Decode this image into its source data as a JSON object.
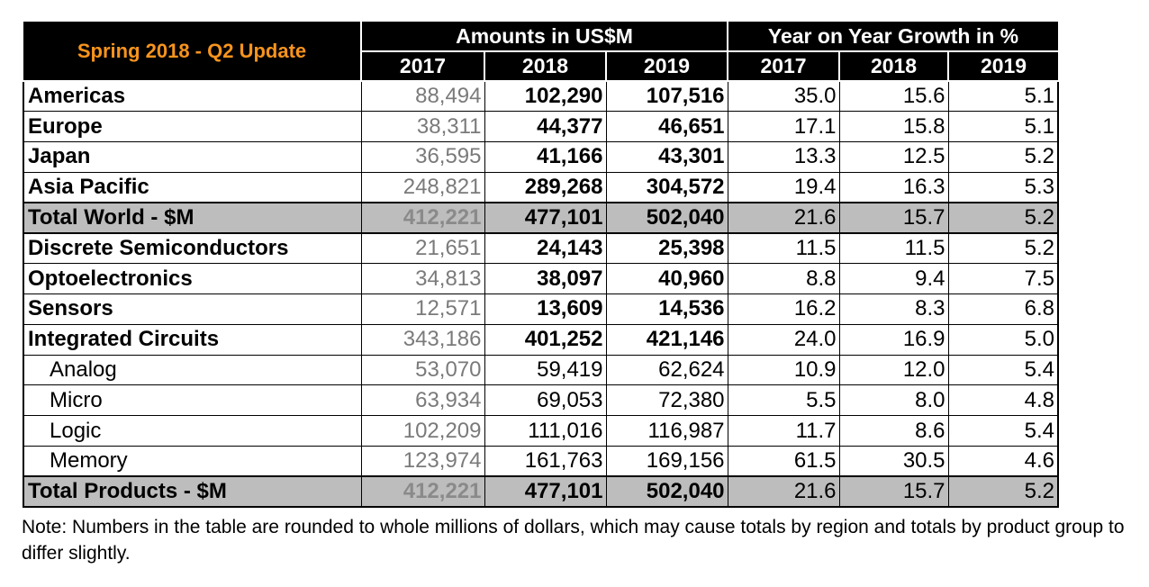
{
  "title": "Spring 2018 - Q2 Update",
  "amounts_header": "Amounts in US$M",
  "growth_header": "Year on Year Growth in %",
  "years": [
    "2017",
    "2018",
    "2019"
  ],
  "rows": [
    {
      "label": "Americas",
      "amounts": [
        "88,494",
        "102,290",
        "107,516"
      ],
      "growth": [
        "35.0",
        "15.6",
        "5.1"
      ],
      "style": "main"
    },
    {
      "label": "Europe",
      "amounts": [
        "38,311",
        "44,377",
        "46,651"
      ],
      "growth": [
        "17.1",
        "15.8",
        "5.1"
      ],
      "style": "main"
    },
    {
      "label": "Japan",
      "amounts": [
        "36,595",
        "41,166",
        "43,301"
      ],
      "growth": [
        "13.3",
        "12.5",
        "5.2"
      ],
      "style": "main"
    },
    {
      "label": "Asia Pacific",
      "amounts": [
        "248,821",
        "289,268",
        "304,572"
      ],
      "growth": [
        "19.4",
        "16.3",
        "5.3"
      ],
      "style": "main"
    },
    {
      "label": "Total World - $M",
      "amounts": [
        "412,221",
        "477,101",
        "502,040"
      ],
      "growth": [
        "21.6",
        "15.7",
        "5.2"
      ],
      "style": "total"
    },
    {
      "label": "Discrete Semiconductors",
      "amounts": [
        "21,651",
        "24,143",
        "25,398"
      ],
      "growth": [
        "11.5",
        "11.5",
        "5.2"
      ],
      "style": "main"
    },
    {
      "label": "Optoelectronics",
      "amounts": [
        "34,813",
        "38,097",
        "40,960"
      ],
      "growth": [
        "8.8",
        "9.4",
        "7.5"
      ],
      "style": "main"
    },
    {
      "label": "Sensors",
      "amounts": [
        "12,571",
        "13,609",
        "14,536"
      ],
      "growth": [
        "16.2",
        "8.3",
        "6.8"
      ],
      "style": "main"
    },
    {
      "label": "Integrated Circuits",
      "amounts": [
        "343,186",
        "401,252",
        "421,146"
      ],
      "growth": [
        "24.0",
        "16.9",
        "5.0"
      ],
      "style": "main"
    },
    {
      "label": "Analog",
      "amounts": [
        "53,070",
        "59,419",
        "62,624"
      ],
      "growth": [
        "10.9",
        "12.0",
        "5.4"
      ],
      "style": "sub"
    },
    {
      "label": "Micro",
      "amounts": [
        "63,934",
        "69,053",
        "72,380"
      ],
      "growth": [
        "5.5",
        "8.0",
        "4.8"
      ],
      "style": "sub"
    },
    {
      "label": "Logic",
      "amounts": [
        "102,209",
        "111,016",
        "116,987"
      ],
      "growth": [
        "11.7",
        "8.6",
        "5.4"
      ],
      "style": "sub"
    },
    {
      "label": "Memory",
      "amounts": [
        "123,974",
        "161,763",
        "169,156"
      ],
      "growth": [
        "61.5",
        "30.5",
        "4.6"
      ],
      "style": "sub"
    },
    {
      "label": "Total Products - $M",
      "amounts": [
        "412,221",
        "477,101",
        "502,040"
      ],
      "growth": [
        "21.6",
        "15.7",
        "5.2"
      ],
      "style": "total"
    }
  ],
  "note": "Note: Numbers in the table are rounded to whole millions of dollars, which may cause totals by region and totals by product group to differ slightly.",
  "colors": {
    "header_bg": "#000000",
    "title_accent": "#f7941d",
    "total_row_bg": "#bdbdbd",
    "muted_2017": "#7a7a7a"
  }
}
